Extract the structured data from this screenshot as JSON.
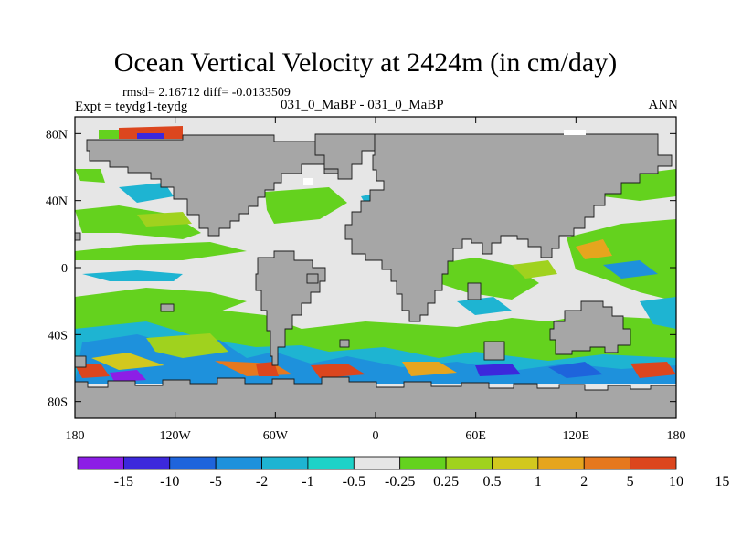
{
  "title": "Ocean Vertical Velocity at 2424m (in cm/day)",
  "stats": "rmsd= 2.16712 diff= -0.0133509",
  "experiment": "Expt = teydg1-teydg",
  "period": "031_0_MaBP - 031_0_MaBP",
  "season": "ANN",
  "map": {
    "lon_range": [
      -180,
      180
    ],
    "lat_range": [
      -90,
      90
    ],
    "land_color": "#a6a6a6",
    "neutral_color": "#e6e6e6",
    "lat_ticks": [
      {
        "lat": 80,
        "label": "80N"
      },
      {
        "lat": 40,
        "label": "40N"
      },
      {
        "lat": 0,
        "label": "0"
      },
      {
        "lat": -40,
        "label": "40S"
      },
      {
        "lat": -80,
        "label": "80S"
      }
    ],
    "lon_ticks": [
      {
        "lon": -180,
        "label": "180"
      },
      {
        "lon": -120,
        "label": "120W"
      },
      {
        "lon": -60,
        "label": "60W"
      },
      {
        "lon": 0,
        "label": "0"
      },
      {
        "lon": 60,
        "label": "60E"
      },
      {
        "lon": 120,
        "label": "120E"
      },
      {
        "lon": 180,
        "label": "180"
      }
    ]
  },
  "colorbar": {
    "colors": [
      "#8c1ee6",
      "#3c28dc",
      "#1e64dc",
      "#1e91dc",
      "#1eb4d2",
      "#1ed2c8",
      "#e6e6e6",
      "#64d21e",
      "#a0d21e",
      "#d2c81e",
      "#e6a51e",
      "#e6781e",
      "#dc461e"
    ],
    "labels": [
      "-15",
      "-10",
      "-5",
      "-2",
      "-1",
      "-0.5",
      "-0.25",
      "0.25",
      "0.5",
      "1",
      "2",
      "5",
      "10",
      "15"
    ]
  }
}
